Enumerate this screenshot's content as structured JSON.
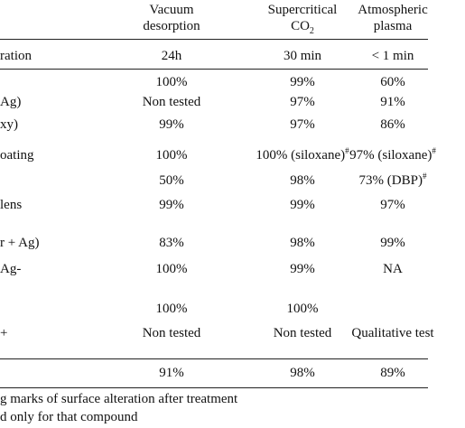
{
  "header": {
    "col1": [
      "Vacuum",
      "desorption"
    ],
    "col2_line1": "Supercritical",
    "col2_line2_main": "CO",
    "col2_line2_sub": "2",
    "col3": [
      "Atmospheric",
      "plasma"
    ]
  },
  "rows": [
    {
      "label": "ration",
      "c1": "24h",
      "c2": "30 min",
      "c3": "< 1 min"
    },
    {
      "label": "",
      "c1": "100%",
      "c2": "99%",
      "c3": "60%"
    },
    {
      "label": "Ag)",
      "c1": "Non tested",
      "c2": "97%",
      "c3": "91%"
    },
    {
      "label": "xy)",
      "c1": "99%",
      "c2": "97%",
      "c3": "86%"
    },
    {
      "label": "oating",
      "c1": "100%",
      "c2": "100% (siloxane)",
      "c2_sup": "#",
      "c3": "97% (siloxane)",
      "c3_sup": "#"
    },
    {
      "label": "",
      "c1": "50%",
      "c2": "98%",
      "c3": "73% (DBP)",
      "c3_sup": "#"
    },
    {
      "label": "lens",
      "c1": "99%",
      "c2": "99%",
      "c3": "97%"
    },
    {
      "label": "r + Ag)",
      "c1": "83%",
      "c2": "98%",
      "c3": "99%"
    },
    {
      "label": "Ag-",
      "c1": "100%",
      "c2": "99%",
      "c3": "NA"
    },
    {
      "label": "",
      "c1": "100%",
      "c2": "100%",
      "c3": ""
    },
    {
      "label": "+",
      "c1": "Non tested",
      "c2": "Non tested",
      "c3": "Qualitative test"
    },
    {
      "label": "",
      "c1": "91%",
      "c2": "98%",
      "c3": "89%"
    }
  ],
  "notes": [
    "g marks of surface alteration after treatment",
    "d only for that compound"
  ]
}
